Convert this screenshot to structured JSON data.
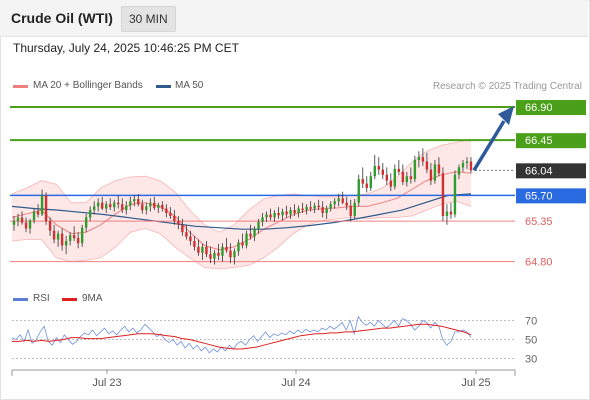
{
  "header": {
    "title": "Crude Oil (WTI)",
    "timeframe": "30 MIN"
  },
  "datetime": "Thursday, July 24, 2025 10:46:25 PM CET",
  "legend": {
    "ma20": {
      "label": "MA 20 + Bollinger Bands",
      "color": "#f08080"
    },
    "ma50": {
      "label": "MA 50",
      "color": "#2e5a8c"
    }
  },
  "credit": "Research © 2025 Trading Central",
  "rsi_legend": {
    "rsi": {
      "label": "RSI",
      "color": "#5b7fd9"
    },
    "ma9": {
      "label": "9MA",
      "color": "#e02020"
    }
  },
  "chart_data": {
    "type": "candlestick",
    "price_ylim": [
      64.55,
      67.05
    ],
    "levels": [
      {
        "value": "66.90",
        "kind": "target",
        "color": "#4aa019"
      },
      {
        "value": "66.45",
        "kind": "target",
        "color": "#4aa019"
      },
      {
        "value": "66.04",
        "kind": "last",
        "color": "#333333"
      },
      {
        "value": "65.70",
        "kind": "pivot",
        "color": "#2a6ae0"
      },
      {
        "value": "65.35",
        "kind": "support",
        "color": "#f08080"
      },
      {
        "value": "64.80",
        "kind": "support",
        "color": "#f08080"
      }
    ],
    "arrow": {
      "from": 66.04,
      "to": 66.9,
      "direction": "up"
    },
    "x_ticks": [
      "Jul 23",
      "Jul 24",
      "Jul 25"
    ],
    "ohlc": [
      [
        65.3,
        65.42,
        65.22,
        65.35
      ],
      [
        65.35,
        65.45,
        65.28,
        65.4
      ],
      [
        65.4,
        65.48,
        65.3,
        65.33
      ],
      [
        65.33,
        65.4,
        65.2,
        65.25
      ],
      [
        65.25,
        65.38,
        65.18,
        65.36
      ],
      [
        65.36,
        65.52,
        65.32,
        65.48
      ],
      [
        65.48,
        65.58,
        65.4,
        65.44
      ],
      [
        65.44,
        65.78,
        65.42,
        65.7
      ],
      [
        65.7,
        65.74,
        65.3,
        65.35
      ],
      [
        65.35,
        65.4,
        65.15,
        65.22
      ],
      [
        65.22,
        65.3,
        65.05,
        65.1
      ],
      [
        65.1,
        65.22,
        65.0,
        65.18
      ],
      [
        65.18,
        65.25,
        64.95,
        65.02
      ],
      [
        65.02,
        65.15,
        64.9,
        65.08
      ],
      [
        65.08,
        65.2,
        65.02,
        65.16
      ],
      [
        65.16,
        65.28,
        65.08,
        65.12
      ],
      [
        65.12,
        65.2,
        64.98,
        65.05
      ],
      [
        65.05,
        65.3,
        65.0,
        65.26
      ],
      [
        65.26,
        65.45,
        65.2,
        65.4
      ],
      [
        65.4,
        65.55,
        65.35,
        65.5
      ],
      [
        65.5,
        65.62,
        65.44,
        65.55
      ],
      [
        65.55,
        65.66,
        65.48,
        65.6
      ],
      [
        65.6,
        65.68,
        65.5,
        65.52
      ],
      [
        65.52,
        65.62,
        65.46,
        65.58
      ],
      [
        65.58,
        65.66,
        65.5,
        65.54
      ],
      [
        65.54,
        65.64,
        65.48,
        65.6
      ],
      [
        65.6,
        65.7,
        65.52,
        65.58
      ],
      [
        65.58,
        65.66,
        65.46,
        65.5
      ],
      [
        65.5,
        65.62,
        65.44,
        65.56
      ],
      [
        65.56,
        65.68,
        65.5,
        65.62
      ],
      [
        65.62,
        65.7,
        65.55,
        65.65
      ],
      [
        65.65,
        65.72,
        65.55,
        65.58
      ],
      [
        65.58,
        65.64,
        65.45,
        65.5
      ],
      [
        65.5,
        65.6,
        65.44,
        65.55
      ],
      [
        65.55,
        65.66,
        65.48,
        65.6
      ],
      [
        65.6,
        65.68,
        65.5,
        65.53
      ],
      [
        65.53,
        65.6,
        65.46,
        65.57
      ],
      [
        65.57,
        65.62,
        65.48,
        65.52
      ],
      [
        65.52,
        65.58,
        65.4,
        65.46
      ],
      [
        65.46,
        65.54,
        65.38,
        65.42
      ],
      [
        65.42,
        65.5,
        65.3,
        65.35
      ],
      [
        65.35,
        65.42,
        65.24,
        65.3
      ],
      [
        65.3,
        65.38,
        65.15,
        65.2
      ],
      [
        65.2,
        65.3,
        65.1,
        65.14
      ],
      [
        65.14,
        65.22,
        65.02,
        65.08
      ],
      [
        65.08,
        65.15,
        64.95,
        65.0
      ],
      [
        65.0,
        65.1,
        64.88,
        64.92
      ],
      [
        64.92,
        65.04,
        64.82,
        65.0
      ],
      [
        65.0,
        65.08,
        64.86,
        64.9
      ],
      [
        64.9,
        65.0,
        64.78,
        64.84
      ],
      [
        64.84,
        64.96,
        64.76,
        64.92
      ],
      [
        64.92,
        65.04,
        64.82,
        64.88
      ],
      [
        64.88,
        65.05,
        64.8,
        65.0
      ],
      [
        65.0,
        65.12,
        64.92,
        64.95
      ],
      [
        64.95,
        65.05,
        64.78,
        64.86
      ],
      [
        64.86,
        64.98,
        64.76,
        64.94
      ],
      [
        64.94,
        65.1,
        64.88,
        65.06
      ],
      [
        65.06,
        65.18,
        64.98,
        65.02
      ],
      [
        65.02,
        65.22,
        64.98,
        65.18
      ],
      [
        65.18,
        65.3,
        65.1,
        65.14
      ],
      [
        65.14,
        65.28,
        65.08,
        65.24
      ],
      [
        65.24,
        65.38,
        65.18,
        65.34
      ],
      [
        65.34,
        65.46,
        65.28,
        65.4
      ],
      [
        65.4,
        65.48,
        65.34,
        65.44
      ],
      [
        65.44,
        65.52,
        65.36,
        65.4
      ],
      [
        65.4,
        65.5,
        65.34,
        65.46
      ],
      [
        65.46,
        65.54,
        65.38,
        65.43
      ],
      [
        65.43,
        65.52,
        65.36,
        65.48
      ],
      [
        65.48,
        65.56,
        65.4,
        65.44
      ],
      [
        65.44,
        65.54,
        65.38,
        65.5
      ],
      [
        65.5,
        65.58,
        65.42,
        65.46
      ],
      [
        65.46,
        65.56,
        65.4,
        65.52
      ],
      [
        65.52,
        65.6,
        65.46,
        65.5
      ],
      [
        65.5,
        65.58,
        65.44,
        65.54
      ],
      [
        65.54,
        65.62,
        65.48,
        65.52
      ],
      [
        65.52,
        65.6,
        65.46,
        65.56
      ],
      [
        65.56,
        65.64,
        65.5,
        65.54
      ],
      [
        65.54,
        65.62,
        65.4,
        65.46
      ],
      [
        65.46,
        65.56,
        65.38,
        65.52
      ],
      [
        65.52,
        65.62,
        65.48,
        65.58
      ],
      [
        65.58,
        65.66,
        65.52,
        65.62
      ],
      [
        65.62,
        65.72,
        65.55,
        65.66
      ],
      [
        65.66,
        65.75,
        65.58,
        65.6
      ],
      [
        65.6,
        65.68,
        65.5,
        65.56
      ],
      [
        65.56,
        65.64,
        65.35,
        65.42
      ],
      [
        65.42,
        65.65,
        65.38,
        65.6
      ],
      [
        65.6,
        65.98,
        65.55,
        65.92
      ],
      [
        65.92,
        66.08,
        65.8,
        65.86
      ],
      [
        65.86,
        65.96,
        65.74,
        65.8
      ],
      [
        65.8,
        66.02,
        65.76,
        65.96
      ],
      [
        65.96,
        66.25,
        65.92,
        66.1
      ],
      [
        66.1,
        66.22,
        65.98,
        66.05
      ],
      [
        66.05,
        66.14,
        65.92,
        65.98
      ],
      [
        65.98,
        66.08,
        65.84,
        65.9
      ],
      [
        65.9,
        66.0,
        65.76,
        65.82
      ],
      [
        65.82,
        66.12,
        65.78,
        66.06
      ],
      [
        66.06,
        66.18,
        65.98,
        66.02
      ],
      [
        66.02,
        66.12,
        65.84,
        65.88
      ],
      [
        65.88,
        66.02,
        65.82,
        65.96
      ],
      [
        65.96,
        66.08,
        65.86,
        65.92
      ],
      [
        65.92,
        66.24,
        65.88,
        66.18
      ],
      [
        66.18,
        66.3,
        66.08,
        66.22
      ],
      [
        66.22,
        66.34,
        66.1,
        66.16
      ],
      [
        66.16,
        66.28,
        66.0,
        66.05
      ],
      [
        66.05,
        66.14,
        65.84,
        65.9
      ],
      [
        65.9,
        66.18,
        65.86,
        66.12
      ],
      [
        66.12,
        66.22,
        65.96,
        66.0
      ],
      [
        66.0,
        66.08,
        65.35,
        65.42
      ],
      [
        65.42,
        65.58,
        65.3,
        65.48
      ],
      [
        65.48,
        65.6,
        65.38,
        65.44
      ],
      [
        65.44,
        66.04,
        65.4,
        65.98
      ],
      [
        65.98,
        66.12,
        65.92,
        66.08
      ],
      [
        66.08,
        66.18,
        66.02,
        66.14
      ],
      [
        66.14,
        66.22,
        66.06,
        66.16
      ],
      [
        66.16,
        66.22,
        66.0,
        66.04
      ]
    ],
    "ma50": [
      65.55,
      65.52,
      65.5,
      65.47,
      65.44,
      65.4,
      65.36,
      65.32,
      65.28,
      65.26,
      65.24,
      65.24,
      65.26,
      65.29,
      65.33,
      65.38,
      65.44,
      65.5,
      65.6,
      65.7,
      65.72
    ],
    "ma20": [
      65.4,
      65.45,
      65.5,
      65.3,
      65.18,
      65.2,
      65.3,
      65.45,
      65.58,
      65.6,
      65.55,
      65.42,
      65.2,
      65.02,
      64.96,
      65.0,
      65.1,
      65.24,
      65.34,
      65.44,
      65.5,
      65.52,
      65.53,
      65.55,
      65.55,
      65.6,
      65.66,
      65.78,
      65.9,
      65.98,
      66.02,
      66.0
    ],
    "boll_upper": [
      65.72,
      65.8,
      65.9,
      65.85,
      65.6,
      65.6,
      65.8,
      65.9,
      65.95,
      65.96,
      65.9,
      65.75,
      65.5,
      65.3,
      65.2,
      65.3,
      65.5,
      65.65,
      65.7,
      65.72,
      65.7,
      65.68,
      65.68,
      65.7,
      65.72,
      65.8,
      65.95,
      66.15,
      66.3,
      66.38,
      66.42,
      66.46
    ],
    "boll_lower": [
      65.08,
      65.1,
      65.1,
      64.85,
      64.8,
      64.82,
      64.85,
      65.0,
      65.2,
      65.25,
      65.18,
      65.0,
      64.85,
      64.72,
      64.7,
      64.72,
      64.75,
      64.85,
      65.0,
      65.18,
      65.3,
      65.36,
      65.38,
      65.4,
      65.38,
      65.4,
      65.4,
      65.42,
      65.5,
      65.58,
      65.62,
      65.55
    ],
    "rsi_ylim": [
      20,
      80
    ],
    "rsi_ticks": [
      "70",
      "50",
      "30"
    ],
    "rsi": [
      52,
      50,
      55,
      48,
      60,
      46,
      50,
      58,
      64,
      48,
      44,
      52,
      47,
      55,
      50,
      45,
      48,
      53,
      57,
      55,
      60,
      54,
      58,
      62,
      56,
      59,
      55,
      60,
      64,
      58,
      62,
      57,
      60,
      66,
      62,
      58,
      53,
      56,
      50,
      47,
      50,
      44,
      48,
      41,
      46,
      40,
      44,
      38,
      42,
      36,
      40,
      37,
      42,
      38,
      44,
      40,
      46,
      48,
      44,
      50,
      54,
      48,
      53,
      58,
      52,
      56,
      54,
      57,
      55,
      59,
      56,
      60,
      57,
      61,
      58,
      60,
      58,
      62,
      60,
      64,
      61,
      64,
      68,
      60,
      70,
      56,
      74,
      68,
      65,
      68,
      64,
      70,
      66,
      62,
      66,
      70,
      64,
      72,
      70,
      66,
      60,
      64,
      70,
      68,
      62,
      68,
      64,
      50,
      44,
      48,
      58,
      58,
      60,
      58,
      52
    ],
    "rsi_ma9": [
      48,
      48,
      49,
      48,
      49,
      48,
      49,
      50,
      52,
      52,
      51,
      51,
      51,
      52,
      53,
      54,
      55,
      56,
      56,
      56,
      55,
      54,
      53,
      51,
      50,
      48,
      46,
      44,
      42,
      41,
      40,
      40,
      41,
      42,
      44,
      46,
      48,
      50,
      52,
      54,
      55,
      56,
      56,
      57,
      57,
      58,
      58,
      59,
      60,
      61,
      62,
      62,
      63,
      64,
      65,
      66,
      66,
      65,
      64,
      62,
      60,
      58,
      55
    ]
  }
}
